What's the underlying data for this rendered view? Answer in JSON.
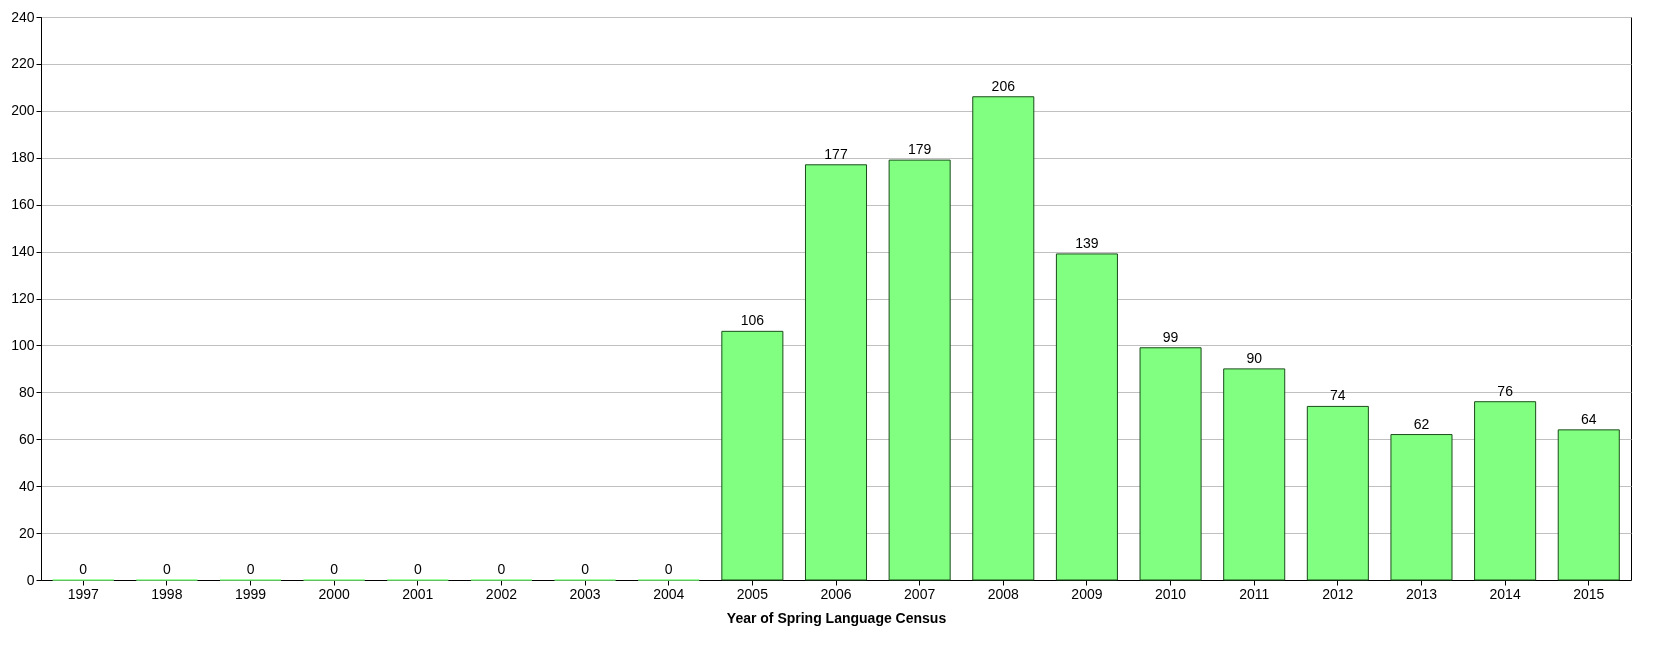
{
  "chart_data": {
    "type": "bar",
    "xlabel": "Year of Spring Language Census",
    "categories": [
      "1997",
      "1998",
      "1999",
      "2000",
      "2001",
      "2002",
      "2003",
      "2004",
      "2005",
      "2006",
      "2007",
      "2008",
      "2009",
      "2010",
      "2011",
      "2012",
      "2013",
      "2014",
      "2015"
    ],
    "values": [
      0,
      0,
      0,
      0,
      0,
      0,
      0,
      0,
      106,
      177,
      179,
      206,
      139,
      99,
      90,
      74,
      62,
      76,
      64
    ],
    "color": "#80ff80",
    "ylim": [
      0,
      240
    ],
    "yticks": [
      0,
      20,
      40,
      60,
      80,
      100,
      120,
      140,
      160,
      180,
      200,
      220,
      240
    ],
    "grid": "y",
    "data_labels": true
  }
}
